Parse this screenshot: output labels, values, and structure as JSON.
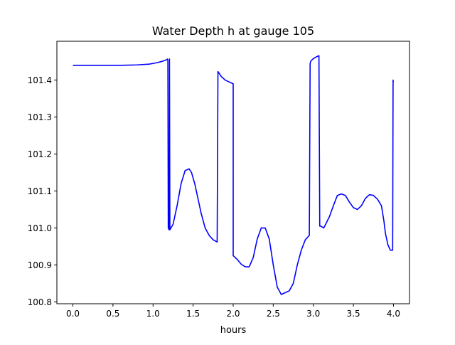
{
  "chart_data": {
    "type": "line",
    "title": "Water Depth h at gauge 105",
    "xlabel": "hours",
    "ylabel": "",
    "xlim": [
      -0.2,
      4.2
    ],
    "ylim": [
      100.795,
      101.505
    ],
    "x_ticks": [
      0.0,
      0.5,
      1.0,
      1.5,
      2.0,
      2.5,
      3.0,
      3.5,
      4.0
    ],
    "x_tick_labels": [
      "0.0",
      "0.5",
      "1.0",
      "1.5",
      "2.0",
      "2.5",
      "3.0",
      "3.5",
      "4.0"
    ],
    "y_ticks": [
      100.8,
      100.9,
      101.0,
      101.1,
      101.2,
      101.3,
      101.4
    ],
    "y_tick_labels": [
      "100.8",
      "100.9",
      "101.0",
      "101.1",
      "101.2",
      "101.3",
      "101.4"
    ],
    "grid": false,
    "legend": "none",
    "series": [
      {
        "color": "#0000ff",
        "x": [
          0.0,
          0.2,
          0.4,
          0.6,
          0.8,
          0.95,
          1.05,
          1.12,
          1.17,
          1.18,
          1.185,
          1.19,
          1.2,
          1.205,
          1.21,
          1.25,
          1.3,
          1.35,
          1.4,
          1.45,
          1.48,
          1.52,
          1.56,
          1.6,
          1.65,
          1.7,
          1.75,
          1.8,
          1.81,
          1.82,
          1.85,
          1.9,
          1.95,
          2.0,
          2.0,
          2.05,
          2.1,
          2.15,
          2.2,
          2.25,
          2.3,
          2.35,
          2.4,
          2.45,
          2.5,
          2.55,
          2.6,
          2.65,
          2.7,
          2.75,
          2.8,
          2.85,
          2.9,
          2.95,
          2.96,
          2.97,
          3.0,
          3.04,
          3.07,
          3.08,
          3.09,
          3.13,
          3.2,
          3.25,
          3.3,
          3.35,
          3.4,
          3.45,
          3.5,
          3.55,
          3.6,
          3.65,
          3.7,
          3.75,
          3.8,
          3.85,
          3.88,
          3.9,
          3.93,
          3.96,
          3.99,
          3.995,
          3.998
        ],
        "y": [
          101.44,
          101.44,
          101.44,
          101.44,
          101.441,
          101.443,
          101.447,
          101.451,
          101.455,
          101.457,
          101.452,
          101.0,
          100.995,
          101.457,
          100.995,
          101.01,
          101.06,
          101.12,
          101.155,
          101.16,
          101.15,
          101.12,
          101.08,
          101.04,
          101.0,
          100.98,
          100.968,
          100.962,
          101.423,
          101.42,
          101.41,
          101.4,
          101.395,
          101.39,
          100.925,
          100.915,
          100.902,
          100.895,
          100.895,
          100.92,
          100.97,
          101.0,
          101.0,
          100.97,
          100.9,
          100.84,
          100.82,
          100.825,
          100.83,
          100.85,
          100.9,
          100.94,
          100.968,
          100.98,
          101.445,
          101.452,
          101.458,
          101.463,
          101.466,
          101.005,
          101.005,
          101.0,
          101.03,
          101.06,
          101.088,
          101.092,
          101.088,
          101.07,
          101.055,
          101.05,
          101.06,
          101.08,
          101.09,
          101.088,
          101.078,
          101.06,
          101.02,
          100.985,
          100.955,
          100.94,
          100.94,
          101.4,
          101.395
        ]
      }
    ]
  }
}
